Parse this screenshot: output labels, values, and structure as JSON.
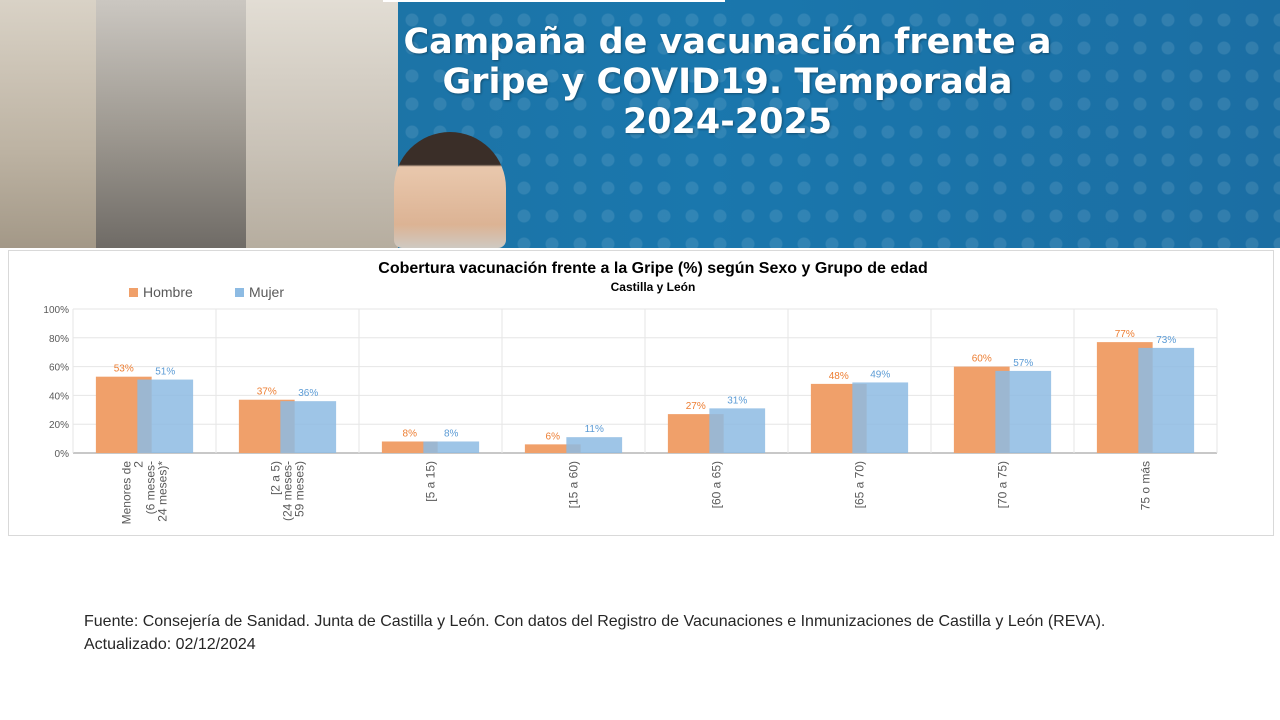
{
  "banner": {
    "title_lines": [
      "Campaña de vacunación frente a",
      "Gripe y COVID19. Temporada",
      "2024-2025"
    ]
  },
  "chart_data": {
    "type": "bar",
    "title": "Cobertura vacunación frente a la Gripe (%) según Sexo y Grupo de edad",
    "subtitle": "Castilla y León",
    "categories": [
      [
        "Menores de",
        "2",
        "(6 meses-",
        "24 meses)*"
      ],
      [
        "[2 a 5)",
        "(24 meses-",
        "59 meses)"
      ],
      [
        "[5 a 15)"
      ],
      [
        "[15 a 60)"
      ],
      [
        "[60 a 65)"
      ],
      [
        "[65 a 70)"
      ],
      [
        "[70 a 75)"
      ],
      [
        "75 o más"
      ]
    ],
    "series": [
      {
        "name": "Hombre",
        "color": "#f0a06a",
        "labelColor": "#ed7d31",
        "values": [
          53,
          37,
          8,
          6,
          27,
          48,
          60,
          77
        ],
        "labels": [
          "53%",
          "37%",
          "8%",
          "6%",
          "27%",
          "48%",
          "60%",
          "77%"
        ]
      },
      {
        "name": "Mujer",
        "color": "#8dbbe3",
        "labelColor": "#5b9bd5",
        "values": [
          51,
          36,
          8,
          11,
          31,
          49,
          57,
          73
        ],
        "labels": [
          "51%",
          "36%",
          "8%",
          "11%",
          "31%",
          "49%",
          "57%",
          "73%"
        ]
      }
    ],
    "yticks": [
      "0%",
      "20%",
      "40%",
      "60%",
      "80%",
      "100%"
    ],
    "ylim": [
      0,
      100
    ],
    "grid": true,
    "legend_position": "top-left"
  },
  "footer": {
    "source": "Fuente: Consejería de Sanidad. Junta de Castilla y León. Con datos del Registro de Vacunaciones e Inmunizaciones  de Castilla y León (REVA).",
    "updated": "Actualizado: 02/12/2024"
  }
}
